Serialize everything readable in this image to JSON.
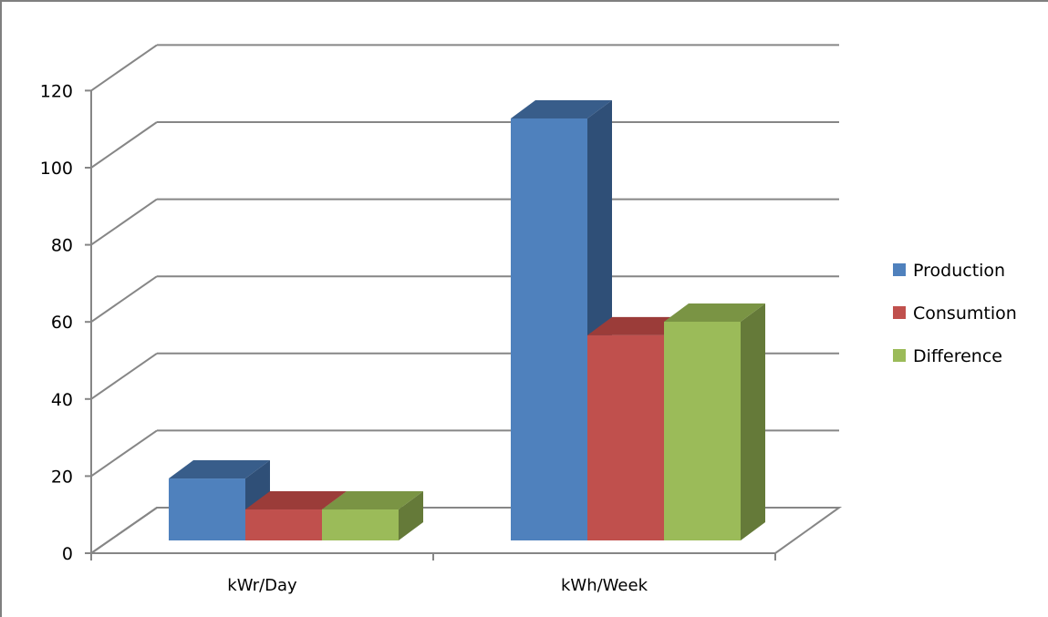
{
  "chart_data": {
    "type": "bar",
    "style": "3d-clustered-column",
    "categories": [
      "kWr/Day",
      "kWh/Week"
    ],
    "series": [
      {
        "name": "Production",
        "values": [
          16,
          109
        ],
        "color": "#4f81bd",
        "top_color": "#385d8a",
        "side_color": "#2f4f77"
      },
      {
        "name": "Consumtion",
        "values": [
          8,
          53
        ],
        "color": "#c0504d",
        "top_color": "#9b3c39",
        "side_color": "#8b3532"
      },
      {
        "name": "Difference",
        "values": [
          8,
          56.5
        ],
        "color": "#9bbb59",
        "top_color": "#7a9444",
        "side_color": "#657a39"
      }
    ],
    "y_ticks": [
      "0",
      "20",
      "40",
      "60",
      "80",
      "100",
      "120"
    ],
    "ylim": [
      0,
      120
    ],
    "grid": true,
    "legend_position": "right"
  }
}
